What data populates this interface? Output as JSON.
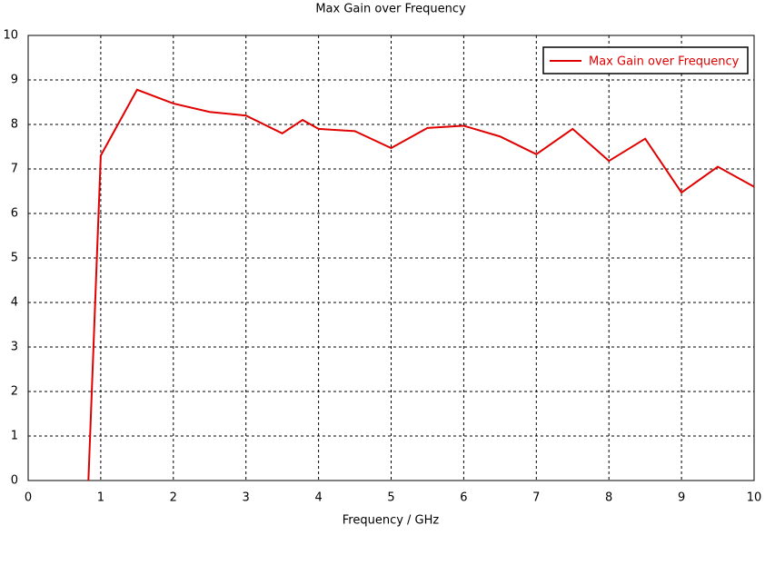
{
  "chart_data": {
    "type": "line",
    "title": "Max Gain over Frequency",
    "x_label": "Frequency / GHz",
    "x": [
      0.83,
      1,
      1.5,
      2,
      2.5,
      3,
      3.5,
      3.78,
      4,
      4.5,
      5,
      5.5,
      6,
      6.5,
      7,
      7.5,
      8,
      8.5,
      9,
      9.5,
      10
    ],
    "series": [
      {
        "name": "Max Gain over Frequency",
        "color": "#e00000",
        "values": [
          0,
          7.3,
          8.78,
          8.47,
          8.28,
          8.2,
          7.8,
          8.1,
          7.9,
          7.85,
          7.47,
          7.92,
          7.97,
          7.73,
          7.33,
          7.9,
          7.18,
          7.68,
          6.47,
          7.05,
          6.6
        ]
      }
    ],
    "xlim": [
      0,
      10
    ],
    "xticks": [
      0,
      1,
      2,
      3,
      4,
      5,
      6,
      7,
      8,
      9,
      10
    ],
    "ylim": [
      0,
      10
    ],
    "yticks": [
      0,
      1,
      2,
      3,
      4,
      5,
      6,
      7,
      8,
      9,
      10
    ],
    "grid": true,
    "legend": "top-right"
  }
}
